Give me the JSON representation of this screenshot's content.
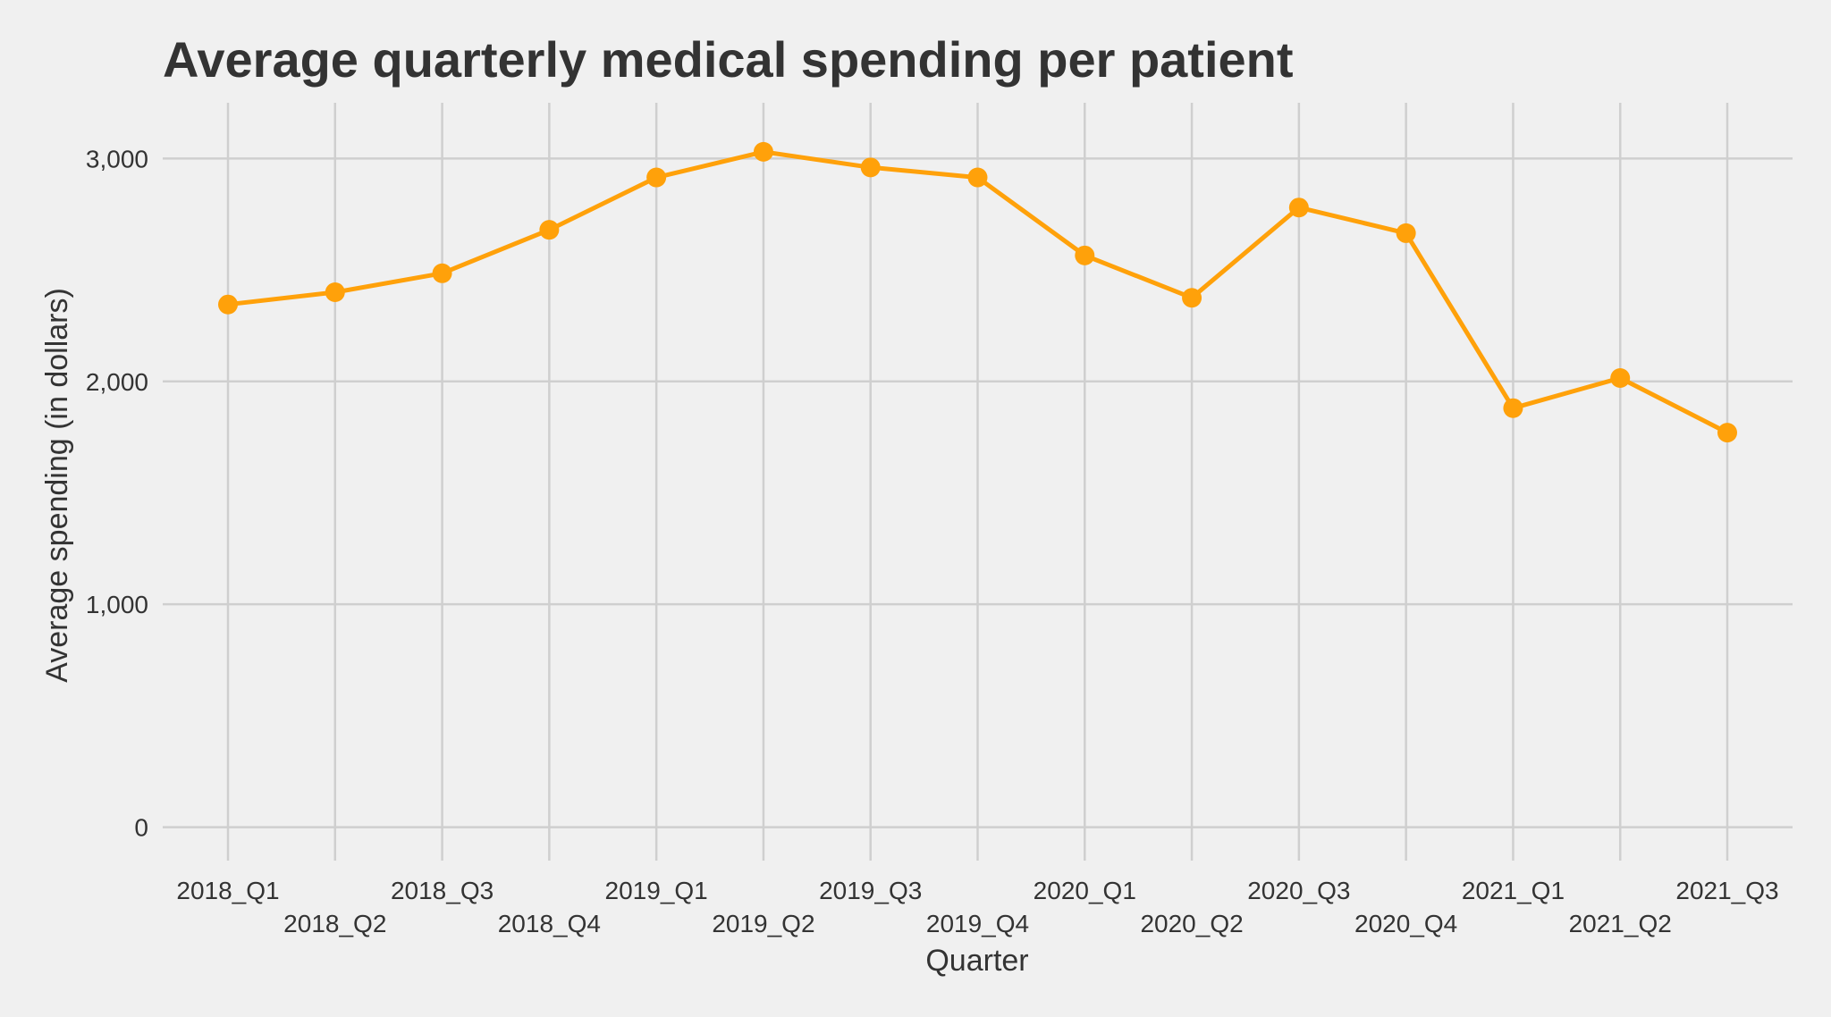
{
  "chart_data": {
    "type": "line",
    "title": "Average quarterly medical spending per patient",
    "xlabel": "Quarter",
    "ylabel": "Average spending (in dollars)",
    "categories": [
      "2018_Q1",
      "2018_Q2",
      "2018_Q3",
      "2018_Q4",
      "2019_Q1",
      "2019_Q2",
      "2019_Q3",
      "2019_Q4",
      "2020_Q1",
      "2020_Q2",
      "2020_Q3",
      "2020_Q4",
      "2021_Q1",
      "2021_Q2",
      "2021_Q3"
    ],
    "values": [
      2345,
      2400,
      2485,
      2680,
      2915,
      3030,
      2960,
      2915,
      2565,
      2375,
      2780,
      2665,
      1880,
      2015,
      1770
    ],
    "yticks": [
      0,
      1000,
      2000,
      3000
    ],
    "ytick_labels": [
      "0",
      "1,000",
      "2,000",
      "3,000"
    ],
    "ylim": [
      -150,
      3250
    ],
    "grid": true,
    "legend": "none",
    "series_color": "#FFA10A",
    "grid_color": "#cfcfcf",
    "background": "#f0f0f0"
  }
}
